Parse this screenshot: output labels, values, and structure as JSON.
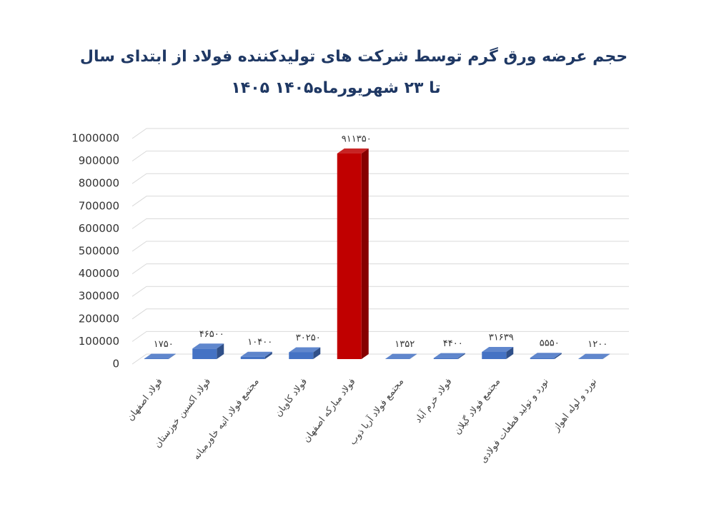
{
  "chart_data": {
    "type": "bar3d",
    "title": "حجم عرضه ورق گرم توسط شرکت های تولیدکننده فولاد از ابتدای سال",
    "subtitle": "۱۴۰۵ تا ۲۳ شهریورماه۱۴۰۵",
    "categories": [
      "فولاد اصفهان",
      "فولاد اکسین خوزستان",
      "مجتمع فولاد اتیه خاورمیانه",
      "فولاد کاویان",
      "فولاد مبارکه اصفهان",
      "مجتمع فولاد آریا ذوب",
      "فولاد خرم آباد",
      "مجتمع فولاد گیلان",
      "نورد و تولید قطعات فولادی",
      "نورد و لوله اهواز"
    ],
    "values": [
      1750,
      46500,
      10400,
      30250,
      911350,
      1352,
      4400,
      31639,
      5550,
      1200
    ],
    "value_labels": [
      "۱۷۵۰",
      "۴۶۵۰۰",
      "۱۰۴۰۰",
      "۳۰۲۵۰",
      "۹۱۱۳۵۰",
      "۱۳۵۲",
      "۴۴۰۰",
      "۳۱۶۳۹",
      "۵۵۵۰",
      "۱۲۰۰"
    ],
    "colors": [
      "#4472c4",
      "#4472c4",
      "#4472c4",
      "#4472c4",
      "#c00000",
      "#4472c4",
      "#4472c4",
      "#4472c4",
      "#4472c4",
      "#4472c4"
    ],
    "ylim": [
      0,
      1000000
    ],
    "yticks": [
      0,
      100000,
      200000,
      300000,
      400000,
      500000,
      600000,
      700000,
      800000,
      900000,
      1000000
    ],
    "grid": true
  }
}
